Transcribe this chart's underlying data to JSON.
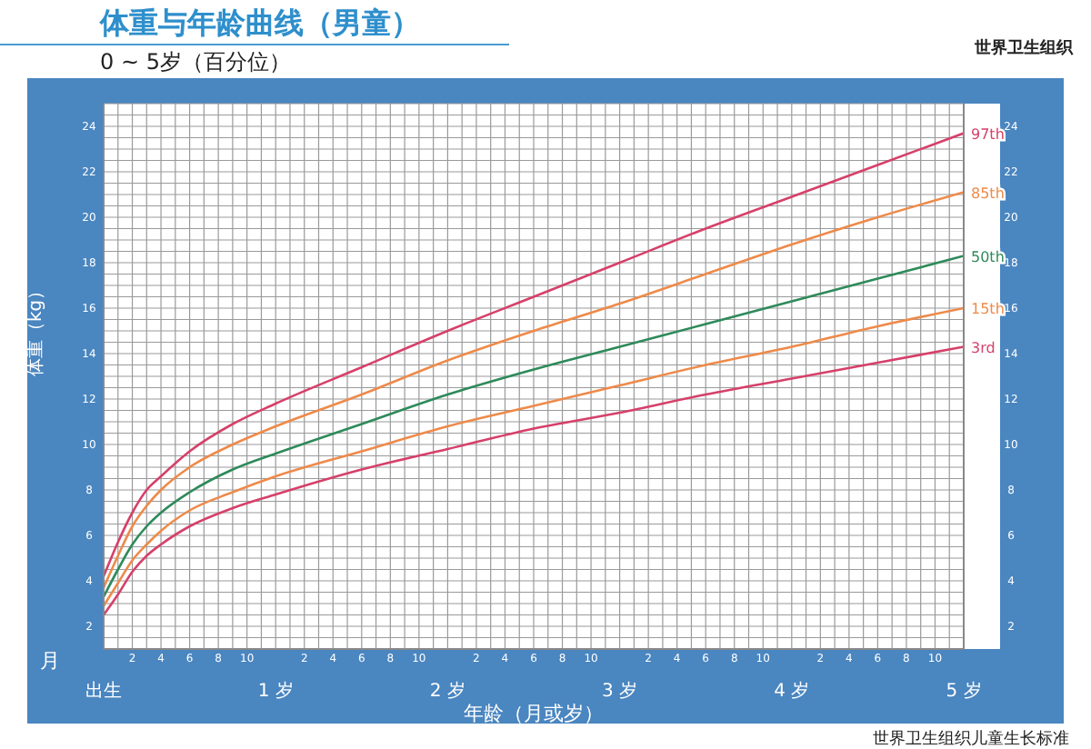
{
  "chart_data": {
    "type": "line",
    "title": "体重与年龄曲线（男童）",
    "subtitle": "0 ~ 5岁（百分位）",
    "xlabel": "年龄（月或岁）",
    "ylabel": "体重（kg）",
    "annotations": [
      "世界卫生组织",
      "月",
      "世界卫生组织儿童生长标准",
      "2",
      "4",
      "6",
      "8",
      "10",
      "2",
      "4",
      "6",
      "8",
      "10",
      "2",
      "4",
      "6",
      "8",
      "10",
      "2",
      "4",
      "6",
      "8",
      "10",
      "2",
      "4",
      "6",
      "8",
      "10"
    ],
    "x": [
      0,
      0.0833,
      0.1667,
      0.25,
      0.3333,
      0.5,
      0.75,
      1,
      1.5,
      2,
      2.5,
      3,
      3.5,
      4,
      4.5,
      5
    ],
    "series": [
      {
        "name": "97th",
        "color": "#d6406a",
        "values": [
          4.2,
          5.7,
          7.0,
          8.0,
          8.6,
          9.7,
          10.9,
          11.8,
          13.4,
          15.0,
          16.5,
          18.0,
          19.5,
          20.9,
          22.3,
          23.7
        ]
      },
      {
        "name": "85th",
        "color": "#ee8a4a",
        "values": [
          3.7,
          5.1,
          6.4,
          7.3,
          8.0,
          9.0,
          10.0,
          10.8,
          12.2,
          13.7,
          15.0,
          16.2,
          17.5,
          18.8,
          20.0,
          21.1
        ]
      },
      {
        "name": "50th",
        "color": "#2e8a5a",
        "values": [
          3.3,
          4.5,
          5.6,
          6.4,
          7.0,
          7.9,
          8.9,
          9.6,
          10.9,
          12.2,
          13.3,
          14.3,
          15.3,
          16.3,
          17.3,
          18.3
        ]
      },
      {
        "name": "15th",
        "color": "#ee8a4a",
        "values": [
          2.9,
          3.9,
          4.9,
          5.6,
          6.2,
          7.1,
          7.9,
          8.6,
          9.7,
          10.8,
          11.7,
          12.6,
          13.5,
          14.3,
          15.2,
          16.0
        ]
      },
      {
        "name": "3rd",
        "color": "#d6406a",
        "values": [
          2.5,
          3.4,
          4.4,
          5.1,
          5.6,
          6.4,
          7.2,
          7.8,
          8.9,
          9.8,
          10.7,
          11.4,
          12.2,
          12.9,
          13.6,
          14.3
        ]
      }
    ],
    "xlim": [
      0,
      5
    ],
    "xticks": [
      {
        "value": 0,
        "label": "出生"
      },
      {
        "value": 0.0833,
        "label": null
      },
      {
        "value": 0.1667,
        "label": null
      },
      {
        "value": 0.25,
        "label": null
      },
      {
        "value": 0.3333,
        "label": null
      },
      {
        "value": 0.4167,
        "label": null
      },
      {
        "value": 0.5,
        "label": null
      },
      {
        "value": 0.5833,
        "label": null
      },
      {
        "value": 0.6667,
        "label": null
      },
      {
        "value": 0.75,
        "label": null
      },
      {
        "value": 0.8333,
        "label": null
      },
      {
        "value": 0.9167,
        "label": null
      },
      {
        "value": 1,
        "label": "1 岁"
      },
      {
        "value": 1.0833,
        "label": null
      },
      {
        "value": 1.1667,
        "label": null
      },
      {
        "value": 1.25,
        "label": null
      },
      {
        "value": 1.3333,
        "label": null
      },
      {
        "value": 1.4167,
        "label": null
      },
      {
        "value": 1.5,
        "label": null
      },
      {
        "value": 1.5833,
        "label": null
      },
      {
        "value": 1.6667,
        "label": null
      },
      {
        "value": 1.75,
        "label": null
      },
      {
        "value": 1.8333,
        "label": null
      },
      {
        "value": 1.9167,
        "label": null
      },
      {
        "value": 2,
        "label": "2 岁"
      },
      {
        "value": 2.0833,
        "label": null
      },
      {
        "value": 2.1667,
        "label": null
      },
      {
        "value": 2.25,
        "label": null
      },
      {
        "value": 2.3333,
        "label": null
      },
      {
        "value": 2.4167,
        "label": null
      },
      {
        "value": 2.5,
        "label": null
      },
      {
        "value": 2.5833,
        "label": null
      },
      {
        "value": 2.6667,
        "label": null
      },
      {
        "value": 2.75,
        "label": null
      },
      {
        "value": 2.8333,
        "label": null
      },
      {
        "value": 2.9167,
        "label": null
      },
      {
        "value": 3,
        "label": "3 岁"
      },
      {
        "value": 3.0833,
        "label": null
      },
      {
        "value": 3.1667,
        "label": null
      },
      {
        "value": 3.25,
        "label": null
      },
      {
        "value": 3.3333,
        "label": null
      },
      {
        "value": 3.4167,
        "label": null
      },
      {
        "value": 3.5,
        "label": null
      },
      {
        "value": 3.5833,
        "label": null
      },
      {
        "value": 3.6667,
        "label": null
      },
      {
        "value": 3.75,
        "label": null
      },
      {
        "value": 3.8333,
        "label": null
      },
      {
        "value": 3.9167,
        "label": null
      },
      {
        "value": 4,
        "label": "4 岁"
      },
      {
        "value": 4.0833,
        "label": null
      },
      {
        "value": 4.1667,
        "label": null
      },
      {
        "value": 4.25,
        "label": null
      },
      {
        "value": 4.3333,
        "label": null
      },
      {
        "value": 4.4167,
        "label": null
      },
      {
        "value": 4.5,
        "label": null
      },
      {
        "value": 4.5833,
        "label": null
      },
      {
        "value": 4.6667,
        "label": null
      },
      {
        "value": 4.75,
        "label": null
      },
      {
        "value": 4.8333,
        "label": null
      },
      {
        "value": 4.9167,
        "label": null
      },
      {
        "value": 5,
        "label": "5 岁"
      }
    ],
    "ylim": [
      1,
      25
    ],
    "yticks": [
      {
        "value": 1,
        "label": null
      },
      {
        "value": 1.5,
        "label": null
      },
      2,
      {
        "value": 2.5,
        "label": null
      },
      {
        "value": 3,
        "label": null
      },
      {
        "value": 3.5,
        "label": null
      },
      4,
      {
        "value": 4.5,
        "label": null
      },
      {
        "value": 5,
        "label": null
      },
      {
        "value": 5.5,
        "label": null
      },
      6,
      {
        "value": 6.5,
        "label": null
      },
      {
        "value": 7,
        "label": null
      },
      {
        "value": 7.5,
        "label": null
      },
      8,
      {
        "value": 8.5,
        "label": null
      },
      {
        "value": 9,
        "label": null
      },
      {
        "value": 9.5,
        "label": null
      },
      10,
      {
        "value": 10.5,
        "label": null
      },
      {
        "value": 11,
        "label": null
      },
      {
        "value": 11.5,
        "label": null
      },
      12,
      {
        "value": 12.5,
        "label": null
      },
      {
        "value": 13,
        "label": null
      },
      {
        "value": 13.5,
        "label": null
      },
      14,
      {
        "value": 14.5,
        "label": null
      },
      {
        "value": 15,
        "label": null
      },
      {
        "value": 15.5,
        "label": null
      },
      16,
      {
        "value": 16.5,
        "label": null
      },
      {
        "value": 17,
        "label": null
      },
      {
        "value": 17.5,
        "label": null
      },
      18,
      {
        "value": 18.5,
        "label": null
      },
      {
        "value": 19,
        "label": null
      },
      {
        "value": 19.5,
        "label": null
      },
      20,
      {
        "value": 20.5,
        "label": null
      },
      {
        "value": 21,
        "label": null
      },
      {
        "value": 21.5,
        "label": null
      },
      22,
      {
        "value": 22.5,
        "label": null
      },
      {
        "value": 23,
        "label": null
      },
      {
        "value": 23.5,
        "label": null
      },
      24,
      {
        "value": 24.5,
        "label": null
      },
      {
        "value": 25,
        "label": null
      }
    ],
    "y2lim": [
      1,
      25
    ],
    "y2ticks": [
      2,
      4,
      6,
      8,
      10,
      12,
      14,
      16,
      18,
      20,
      22,
      24
    ],
    "grid": true,
    "marker": "none",
    "line_style": "solid"
  }
}
